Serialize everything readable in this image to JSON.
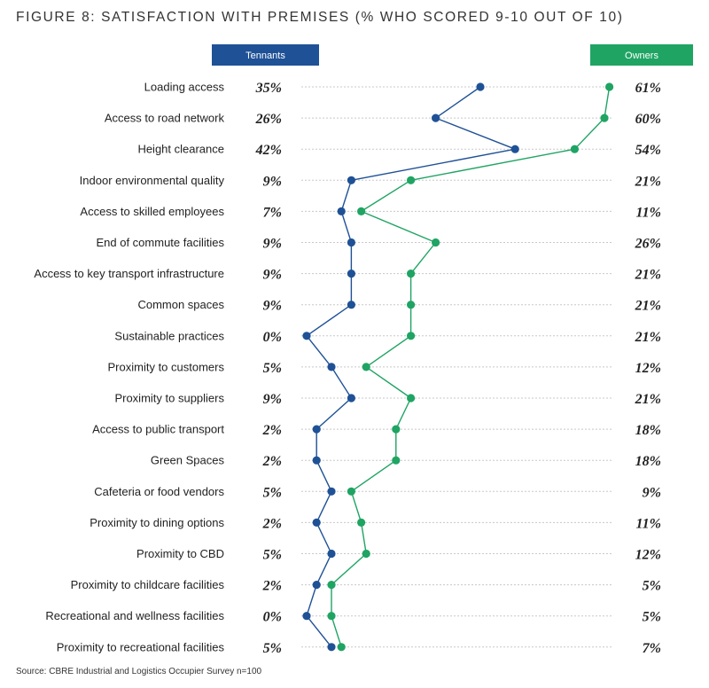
{
  "chart_data": {
    "type": "line",
    "title": "FIGURE 8: SATISFACTION WITH PREMISES (% WHO SCORED 9-10 OUT OF 10)",
    "categories": [
      "Loading access",
      "Access to road network",
      "Height clearance",
      "Indoor environmental quality",
      "Access to skilled employees",
      "End of commute facilities",
      "Access to key transport infrastructure",
      "Common spaces",
      "Sustainable practices",
      "Proximity to customers",
      "Proximity to suppliers",
      "Access to public transport",
      "Green Spaces",
      "Cafeteria or food vendors",
      "Proximity to dining options",
      "Proximity to CBD",
      "Proximity to childcare facilities",
      "Recreational and wellness facilities",
      "Proximity to recreational facilities"
    ],
    "series": [
      {
        "name": "Tennants",
        "color": "#1f5196",
        "values": [
          35,
          26,
          42,
          9,
          7,
          9,
          9,
          9,
          0,
          5,
          9,
          2,
          2,
          5,
          2,
          5,
          2,
          0,
          5
        ]
      },
      {
        "name": "Owners",
        "color": "#1fa463",
        "values": [
          61,
          60,
          54,
          21,
          11,
          26,
          21,
          21,
          21,
          12,
          21,
          18,
          18,
          9,
          11,
          12,
          5,
          5,
          7
        ]
      }
    ],
    "value_suffix": "%",
    "xlim": [
      0,
      64
    ],
    "grid": "horizontal dashed",
    "source": "Source: CBRE Industrial and Logistics Occupier Survey n=100"
  }
}
